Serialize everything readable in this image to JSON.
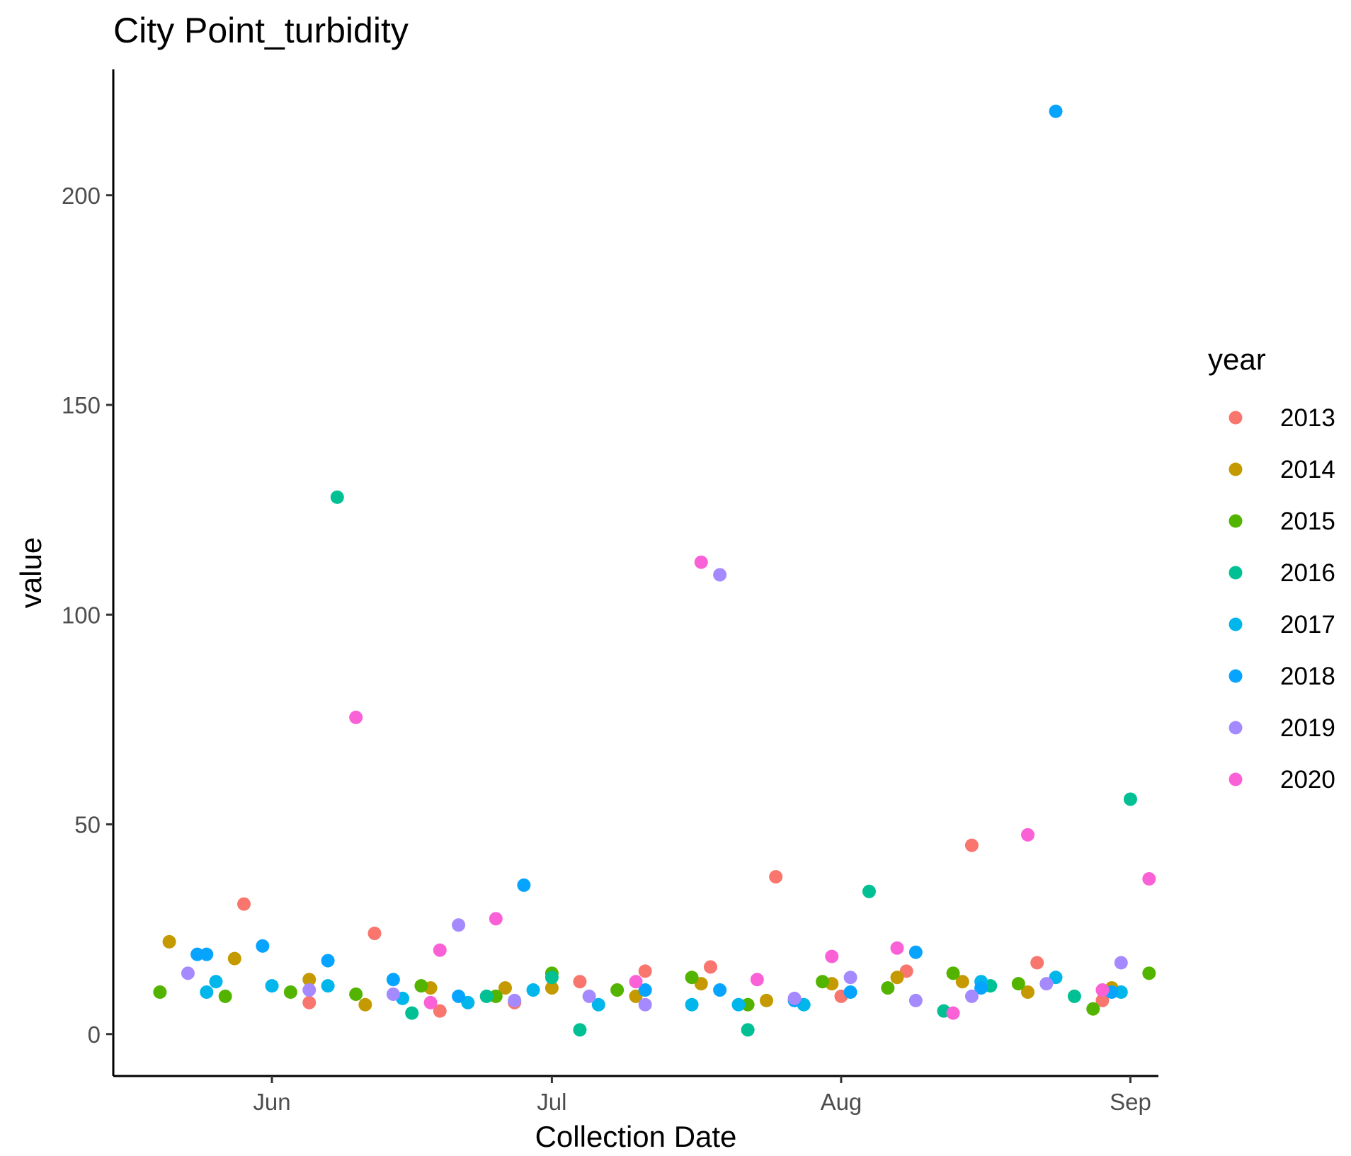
{
  "chart_data": {
    "type": "scatter",
    "title": "City Point_turbidity",
    "xlabel": "Collection Date",
    "ylabel": "value",
    "x_axis_type": "date",
    "reference_year": 2000,
    "xlim": [
      "2000-05-15",
      "2000-09-04"
    ],
    "ylim": [
      -10,
      230
    ],
    "x_ticks": [
      {
        "date": "2000-06-01",
        "label": "Jun"
      },
      {
        "date": "2000-07-01",
        "label": "Jul"
      },
      {
        "date": "2000-08-01",
        "label": "Aug"
      },
      {
        "date": "2000-09-01",
        "label": "Sep"
      }
    ],
    "y_ticks": [
      0,
      50,
      100,
      150,
      200
    ],
    "grid": false,
    "legend": {
      "title": "year",
      "position": "right"
    },
    "series": [
      {
        "name": "2013",
        "color": "#F8766D",
        "points": [
          [
            "2000-05-29",
            31
          ],
          [
            "2000-06-05",
            7.5
          ],
          [
            "2000-06-12",
            24
          ],
          [
            "2000-06-19",
            5.5
          ],
          [
            "2000-06-27",
            7.5
          ],
          [
            "2000-07-04",
            12.5
          ],
          [
            "2000-07-11",
            15
          ],
          [
            "2000-07-18",
            16
          ],
          [
            "2000-07-25",
            37.5
          ],
          [
            "2000-08-01",
            9
          ],
          [
            "2000-08-08",
            15
          ],
          [
            "2000-08-15",
            45
          ],
          [
            "2000-08-22",
            17
          ],
          [
            "2000-08-29",
            8
          ]
        ]
      },
      {
        "name": "2014",
        "color": "#C49A00",
        "points": [
          [
            "2000-05-21",
            22
          ],
          [
            "2000-05-28",
            18
          ],
          [
            "2000-06-05",
            13
          ],
          [
            "2000-06-11",
            7
          ],
          [
            "2000-06-18",
            11
          ],
          [
            "2000-06-26",
            11
          ],
          [
            "2000-07-01",
            11
          ],
          [
            "2000-07-10",
            9
          ],
          [
            "2000-07-17",
            12
          ],
          [
            "2000-07-24",
            8
          ],
          [
            "2000-07-31",
            12
          ],
          [
            "2000-08-07",
            13.5
          ],
          [
            "2000-08-14",
            12.5
          ],
          [
            "2000-08-21",
            10
          ],
          [
            "2000-08-30",
            11
          ]
        ]
      },
      {
        "name": "2015",
        "color": "#53B400",
        "points": [
          [
            "2000-05-20",
            10
          ],
          [
            "2000-05-27",
            9
          ],
          [
            "2000-06-03",
            10
          ],
          [
            "2000-06-10",
            9.5
          ],
          [
            "2000-06-17",
            11.5
          ],
          [
            "2000-06-25",
            9
          ],
          [
            "2000-07-01",
            14.5
          ],
          [
            "2000-07-08",
            10.5
          ],
          [
            "2000-07-16",
            13.5
          ],
          [
            "2000-07-22",
            7
          ],
          [
            "2000-07-30",
            12.5
          ],
          [
            "2000-08-06",
            11
          ],
          [
            "2000-08-13",
            14.5
          ],
          [
            "2000-08-20",
            12
          ],
          [
            "2000-08-28",
            6
          ],
          [
            "2000-09-03",
            14.5
          ]
        ]
      },
      {
        "name": "2016",
        "color": "#00C094",
        "points": [
          [
            "2000-06-08",
            128
          ],
          [
            "2000-06-16",
            5
          ],
          [
            "2000-06-24",
            9
          ],
          [
            "2000-07-01",
            13.5
          ],
          [
            "2000-07-04",
            1
          ],
          [
            "2000-07-22",
            1
          ],
          [
            "2000-08-04",
            34
          ],
          [
            "2000-08-12",
            5.5
          ],
          [
            "2000-08-17",
            11.5
          ],
          [
            "2000-08-26",
            9
          ],
          [
            "2000-09-01",
            56
          ]
        ]
      },
      {
        "name": "2017",
        "color": "#00B6EB",
        "points": [
          [
            "2000-05-25",
            10
          ],
          [
            "2000-05-26",
            12.5
          ],
          [
            "2000-06-01",
            11.5
          ],
          [
            "2000-06-07",
            11.5
          ],
          [
            "2000-06-15",
            8.5
          ],
          [
            "2000-06-22",
            7.5
          ],
          [
            "2000-06-29",
            10.5
          ],
          [
            "2000-07-06",
            7
          ],
          [
            "2000-07-16",
            7
          ],
          [
            "2000-07-21",
            7
          ],
          [
            "2000-07-28",
            7
          ],
          [
            "2000-08-16",
            12.5
          ],
          [
            "2000-08-24",
            13.5
          ],
          [
            "2000-08-31",
            10
          ]
        ]
      },
      {
        "name": "2018",
        "color": "#06A4FF",
        "points": [
          [
            "2000-05-24",
            19
          ],
          [
            "2000-05-25",
            19
          ],
          [
            "2000-05-31",
            21
          ],
          [
            "2000-06-07",
            17.5
          ],
          [
            "2000-06-14",
            13
          ],
          [
            "2000-06-21",
            9
          ],
          [
            "2000-06-28",
            35.5
          ],
          [
            "2000-07-11",
            10.5
          ],
          [
            "2000-07-19",
            10.5
          ],
          [
            "2000-07-27",
            8
          ],
          [
            "2000-08-02",
            10
          ],
          [
            "2000-08-09",
            19.5
          ],
          [
            "2000-08-16",
            11
          ],
          [
            "2000-08-24",
            220
          ],
          [
            "2000-08-30",
            10
          ]
        ]
      },
      {
        "name": "2019",
        "color": "#A58AFF",
        "points": [
          [
            "2000-05-23",
            14.5
          ],
          [
            "2000-06-05",
            10.5
          ],
          [
            "2000-06-14",
            9.5
          ],
          [
            "2000-06-21",
            26
          ],
          [
            "2000-06-27",
            8
          ],
          [
            "2000-07-05",
            9
          ],
          [
            "2000-07-11",
            7
          ],
          [
            "2000-07-19",
            109.5
          ],
          [
            "2000-07-27",
            8.5
          ],
          [
            "2000-08-02",
            13.5
          ],
          [
            "2000-08-09",
            8
          ],
          [
            "2000-08-15",
            9
          ],
          [
            "2000-08-23",
            12
          ],
          [
            "2000-08-31",
            17
          ]
        ]
      },
      {
        "name": "2020",
        "color": "#FB61D7",
        "points": [
          [
            "2000-06-10",
            75.5
          ],
          [
            "2000-06-18",
            7.5
          ],
          [
            "2000-06-19",
            20
          ],
          [
            "2000-06-25",
            27.5
          ],
          [
            "2000-07-10",
            12.5
          ],
          [
            "2000-07-17",
            112.5
          ],
          [
            "2000-07-23",
            13
          ],
          [
            "2000-07-31",
            18.5
          ],
          [
            "2000-08-07",
            20.5
          ],
          [
            "2000-08-13",
            5
          ],
          [
            "2000-08-21",
            47.5
          ],
          [
            "2000-08-29",
            10.5
          ],
          [
            "2000-09-03",
            37
          ]
        ]
      }
    ]
  }
}
